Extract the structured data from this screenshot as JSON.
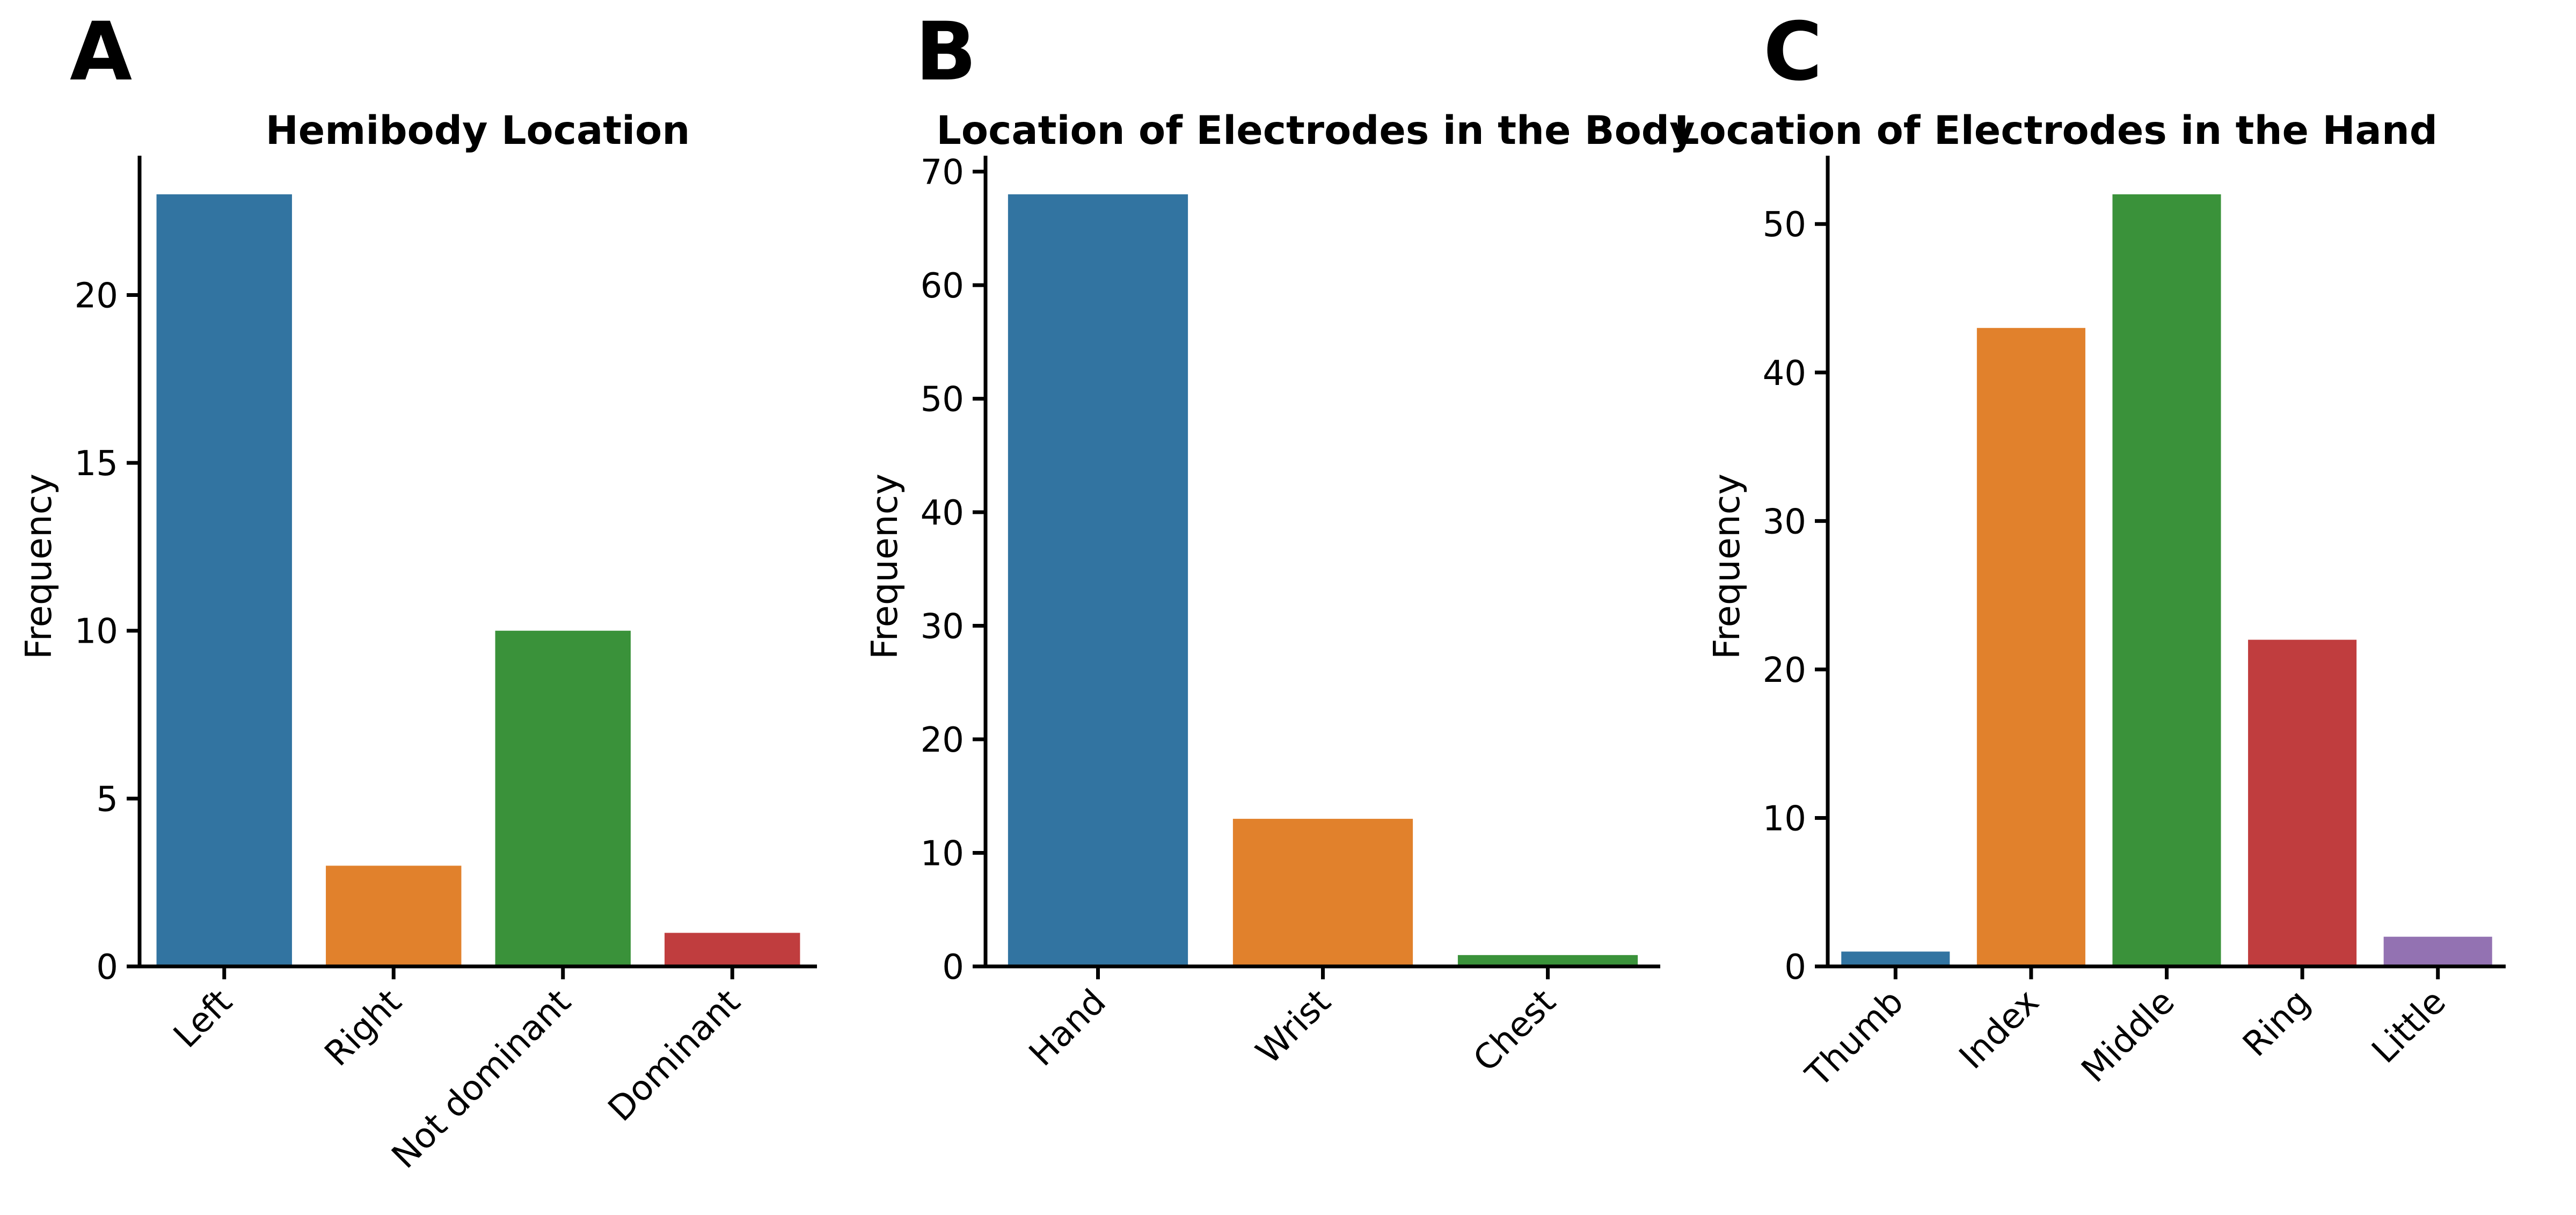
{
  "chart_data": [
    {
      "panel_label": "A",
      "type": "bar",
      "title": "Hemibody Location",
      "xlabel": "",
      "ylabel": "Frequency",
      "categories": [
        "Left",
        "Right",
        "Not dominant",
        "Dominant"
      ],
      "values": [
        23,
        3,
        10,
        1
      ],
      "colors": [
        "#3274a1",
        "#e1812c",
        "#3a923a",
        "#c03d3e"
      ],
      "ylim": [
        0,
        24.15
      ],
      "yticks": [
        0,
        5,
        10,
        15,
        20
      ],
      "grid": false,
      "legend": "none"
    },
    {
      "panel_label": "B",
      "type": "bar",
      "title": "Location of Electrodes in the Body",
      "xlabel": "",
      "ylabel": "Frequency",
      "categories": [
        "Hand",
        "Wrist",
        "Chest"
      ],
      "values": [
        68,
        13,
        1
      ],
      "colors": [
        "#3274a1",
        "#e1812c",
        "#3a923a"
      ],
      "ylim": [
        0,
        71.4
      ],
      "yticks": [
        0,
        10,
        20,
        30,
        40,
        50,
        60,
        70
      ],
      "grid": false,
      "legend": "none"
    },
    {
      "panel_label": "C",
      "type": "bar",
      "title": "Location of Electrodes in the Hand",
      "xlabel": "",
      "ylabel": "Frequency",
      "categories": [
        "Thumb",
        "Index",
        "Middle",
        "Ring",
        "Little"
      ],
      "values": [
        1,
        43,
        52,
        22,
        2
      ],
      "colors": [
        "#3274a1",
        "#e1812c",
        "#3a923a",
        "#c03d3e",
        "#9372b2"
      ],
      "ylim": [
        0,
        54.6
      ],
      "yticks": [
        0,
        10,
        20,
        30,
        40,
        50
      ],
      "grid": false,
      "legend": "none"
    }
  ]
}
